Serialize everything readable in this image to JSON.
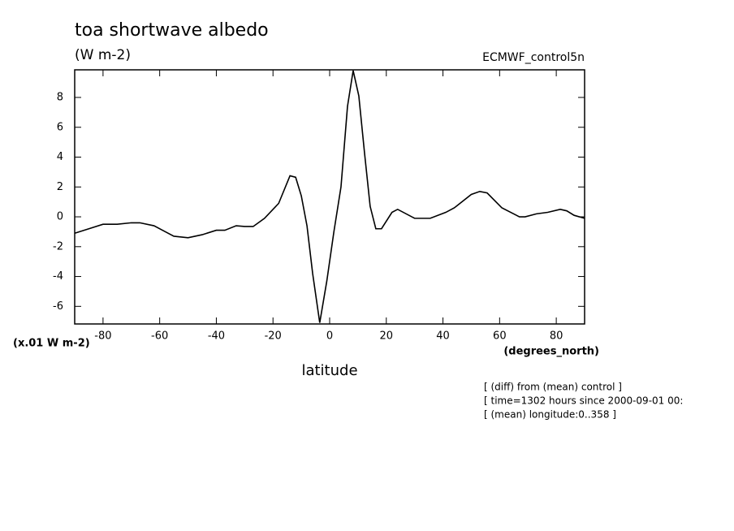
{
  "chart_data": {
    "type": "line",
    "title": "toa shortwave albedo",
    "units": "(W m-2)",
    "experiment": "ECMWF_control5n",
    "scale_label": "(x.01 W m-2)",
    "x_units": "(degrees_north)",
    "xlabel": "latitude",
    "notes": [
      "[ (diff) from (mean) control ]",
      "[ time=1302 hours since 2000-09-01 00:",
      "[ (mean) longitude:0..358 ]"
    ],
    "x": [
      -90,
      -85,
      -80,
      -75,
      -70,
      -67,
      -62,
      -58,
      -55,
      -50,
      -45,
      -40,
      -37,
      -33,
      -30,
      -27,
      -23,
      -18,
      -14,
      -12,
      -10,
      -8,
      -6,
      -3.5,
      -1,
      1.5,
      4,
      6.3,
      8.3,
      10.3,
      12.3,
      14.3,
      16.3,
      18.3,
      22,
      24,
      30,
      35.5,
      41,
      44,
      50,
      53,
      55.6,
      60.8,
      67,
      69,
      73,
      77,
      81.4,
      83.7,
      86.3,
      90
    ],
    "series": [
      {
        "name": "toa shortwave albedo",
        "color": "#000000",
        "values": [
          -1.1,
          -0.8,
          -0.5,
          -0.5,
          -0.4,
          -0.4,
          -0.6,
          -1.0,
          -1.3,
          -1.4,
          -1.2,
          -0.9,
          -0.9,
          -0.6,
          -0.65,
          -0.65,
          -0.1,
          0.9,
          2.75,
          2.65,
          1.4,
          -0.6,
          -3.8,
          -7.1,
          -4.3,
          -1.0,
          2.0,
          7.4,
          9.8,
          8.1,
          4.3,
          0.7,
          -0.8,
          -0.8,
          0.3,
          0.5,
          -0.1,
          -0.1,
          0.3,
          0.6,
          1.5,
          1.7,
          1.6,
          0.6,
          0.0,
          0.0,
          0.2,
          0.3,
          0.5,
          0.4,
          0.1,
          -0.1
        ]
      }
    ],
    "xlim": [
      -90,
      90
    ],
    "ylim": [
      -7.18,
      9.85
    ],
    "xticks": [
      -80,
      -60,
      -40,
      -20,
      0,
      20,
      40,
      60,
      80
    ],
    "yticks": [
      -6,
      -4,
      -2,
      0,
      2,
      4,
      6,
      8
    ],
    "grid": false
  }
}
